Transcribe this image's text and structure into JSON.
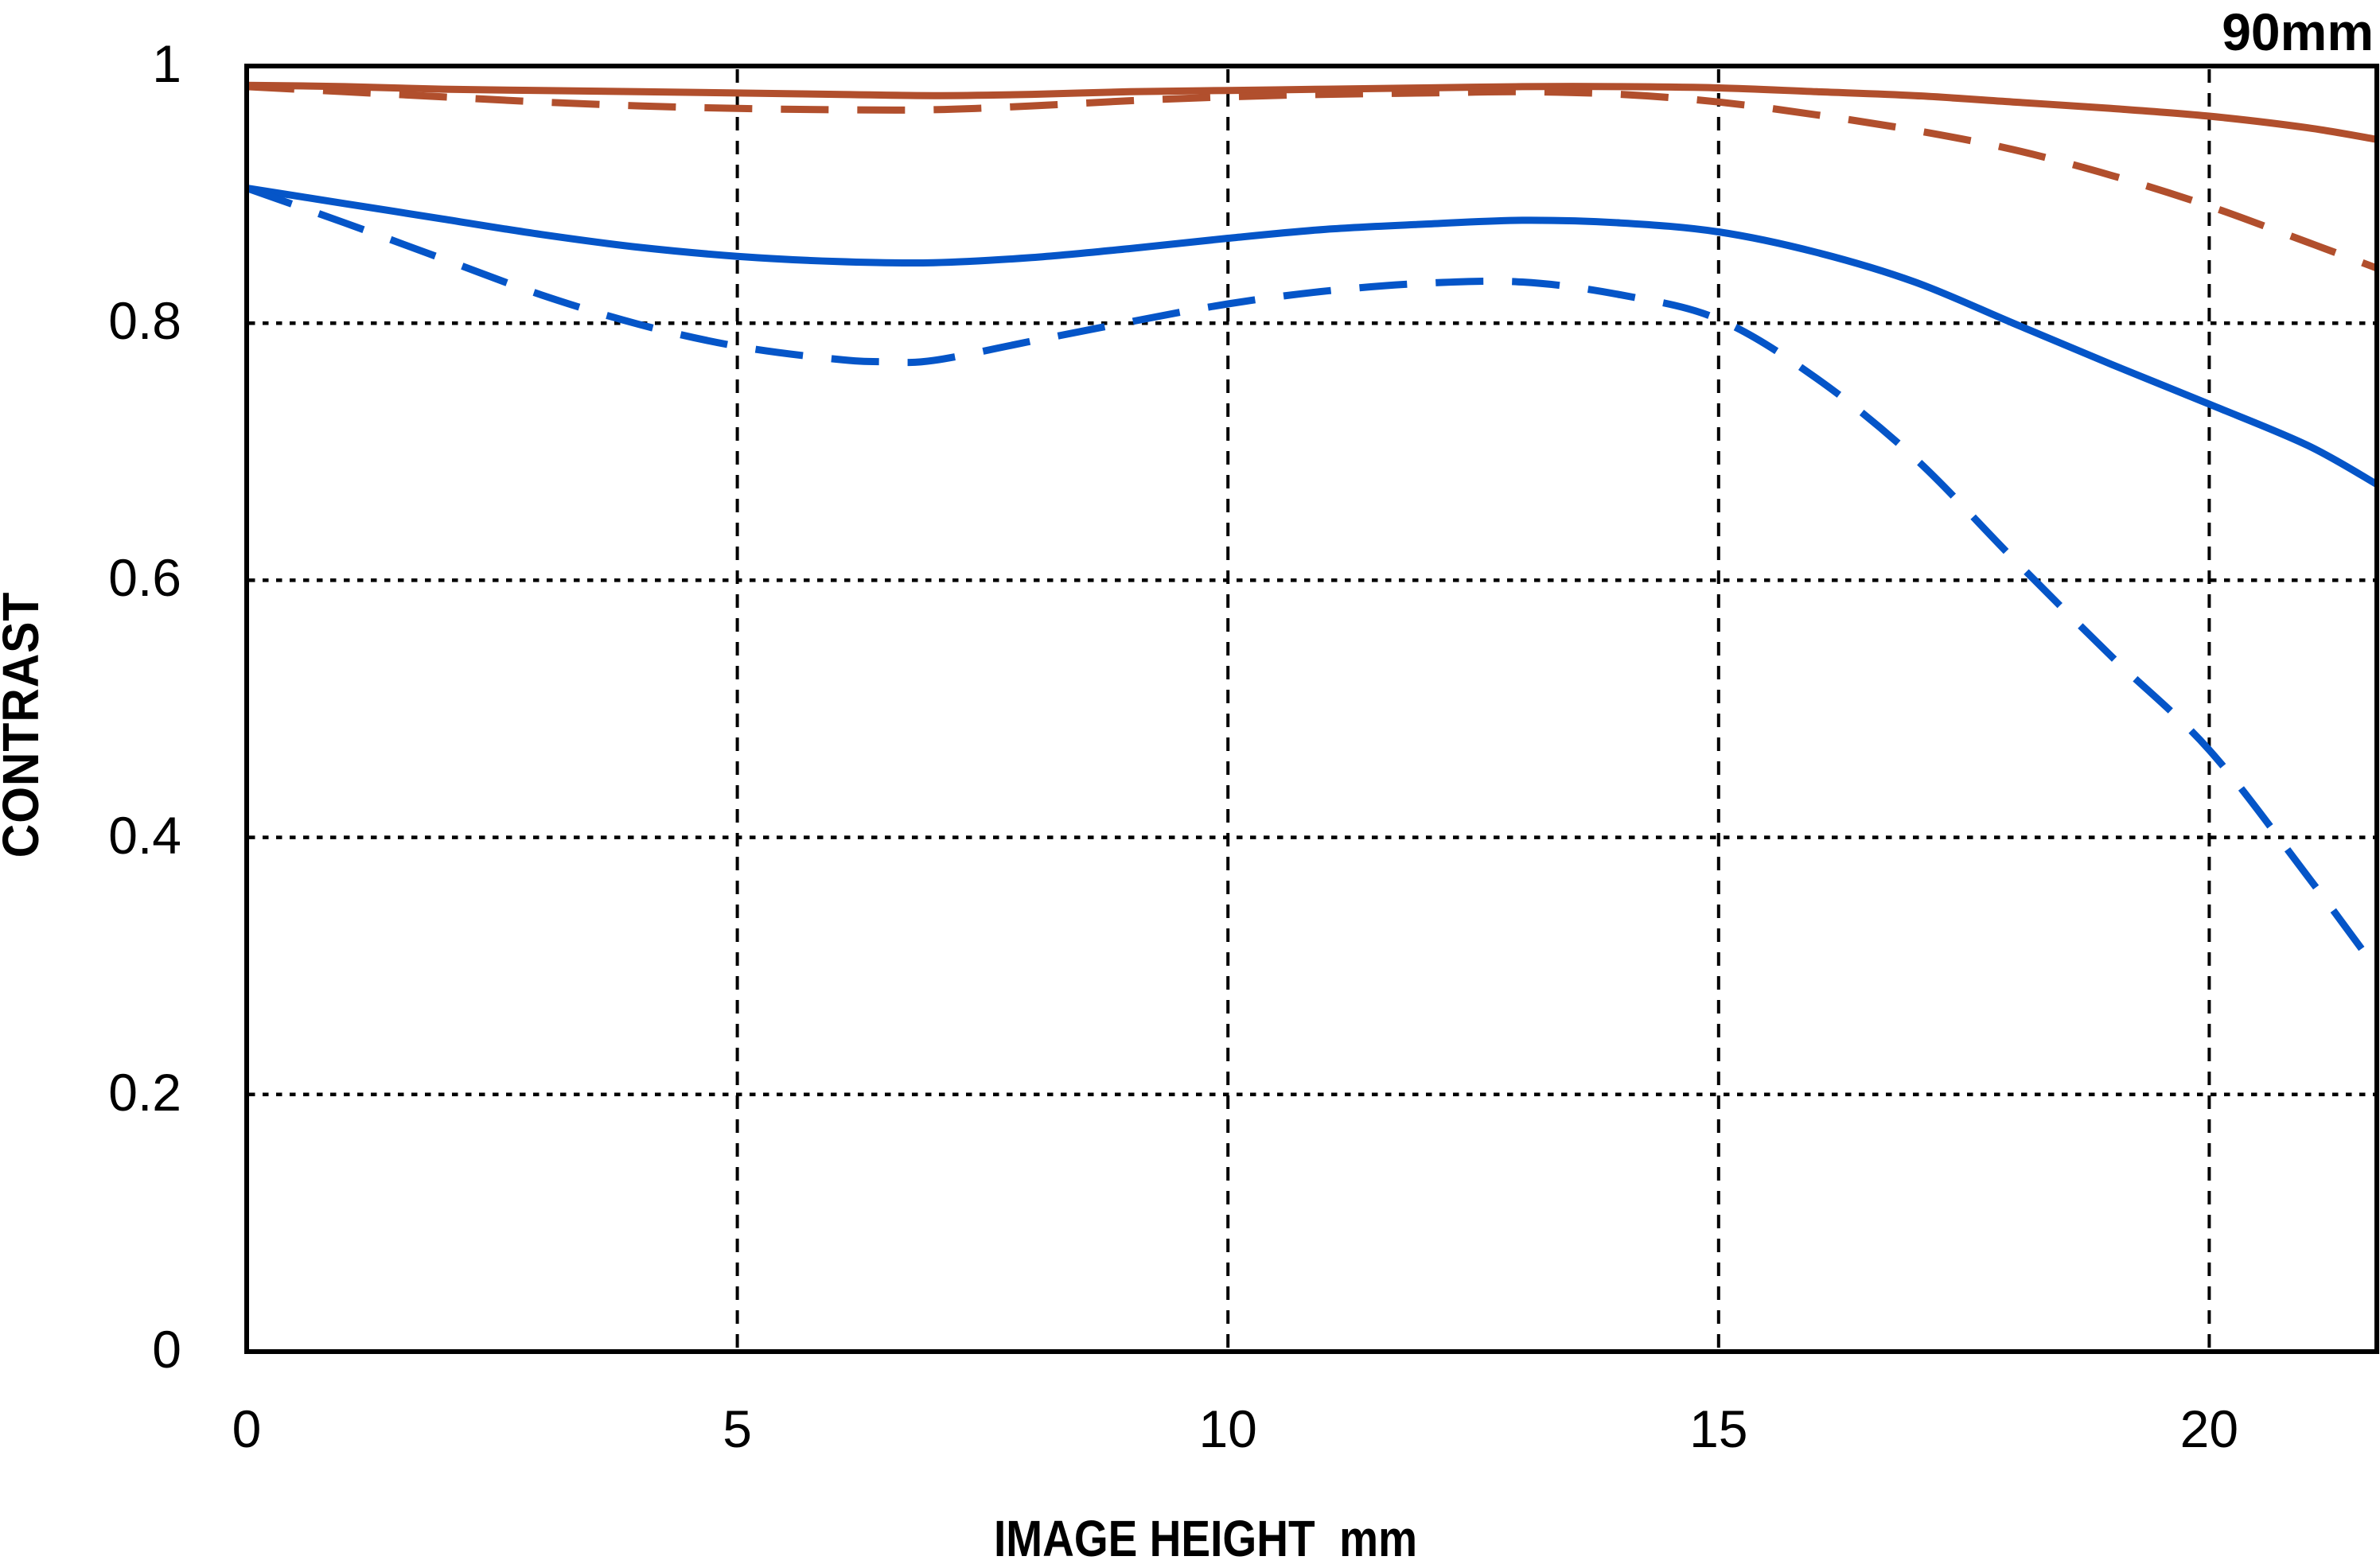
{
  "title": "90mm",
  "chart_data": {
    "type": "line",
    "title": "90mm",
    "xlabel": "IMAGE HEIGHT  mm",
    "ylabel": "CONTRAST",
    "xlim": [
      0,
      21.7
    ],
    "ylim": [
      0,
      1
    ],
    "grid": true,
    "legend": "none",
    "x_ticks": [
      {
        "v": 0,
        "label": "0"
      },
      {
        "v": 5,
        "label": "5"
      },
      {
        "v": 10,
        "label": "10"
      },
      {
        "v": 15,
        "label": "15"
      },
      {
        "v": 20,
        "label": "20"
      }
    ],
    "y_ticks": [
      {
        "v": 1,
        "label": "1"
      },
      {
        "v": 0.8,
        "label": "0.8"
      },
      {
        "v": 0.6,
        "label": "0.6"
      },
      {
        "v": 0.4,
        "label": "0.4"
      },
      {
        "v": 0.2,
        "label": "0.2"
      },
      {
        "v": 0,
        "label": "0"
      }
    ],
    "colors": {
      "red": "#b14f2d",
      "blue": "#0555c8",
      "axis": "#000000"
    },
    "series": [
      {
        "name": "red-solid",
        "color_key": "red",
        "dash": "solid",
        "points": [
          [
            0,
            0.985
          ],
          [
            1,
            0.984
          ],
          [
            2,
            0.982
          ],
          [
            3,
            0.981
          ],
          [
            4,
            0.98
          ],
          [
            5,
            0.979
          ],
          [
            6,
            0.978
          ],
          [
            7,
            0.977
          ],
          [
            8,
            0.978
          ],
          [
            9,
            0.98
          ],
          [
            10,
            0.981
          ],
          [
            11,
            0.982
          ],
          [
            12,
            0.983
          ],
          [
            13,
            0.984
          ],
          [
            14,
            0.984
          ],
          [
            15,
            0.983
          ],
          [
            16,
            0.98
          ],
          [
            17,
            0.977
          ],
          [
            18,
            0.972
          ],
          [
            19,
            0.967
          ],
          [
            20,
            0.961
          ],
          [
            21,
            0.952
          ],
          [
            21.7,
            0.943
          ]
        ]
      },
      {
        "name": "red-dashed",
        "color_key": "red",
        "dash": "dashed",
        "points": [
          [
            0,
            0.984
          ],
          [
            1,
            0.98
          ],
          [
            2,
            0.976
          ],
          [
            3,
            0.972
          ],
          [
            4,
            0.969
          ],
          [
            5,
            0.967
          ],
          [
            6,
            0.966
          ],
          [
            7,
            0.966
          ],
          [
            8,
            0.969
          ],
          [
            9,
            0.973
          ],
          [
            10,
            0.976
          ],
          [
            11,
            0.978
          ],
          [
            12,
            0.979
          ],
          [
            13,
            0.98
          ],
          [
            14,
            0.978
          ],
          [
            15,
            0.972
          ],
          [
            16,
            0.962
          ],
          [
            17,
            0.95
          ],
          [
            18,
            0.935
          ],
          [
            19,
            0.915
          ],
          [
            20,
            0.891
          ],
          [
            21,
            0.863
          ],
          [
            21.7,
            0.843
          ]
        ]
      },
      {
        "name": "blue-solid",
        "color_key": "blue",
        "dash": "solid",
        "points": [
          [
            0,
            0.905
          ],
          [
            1,
            0.893
          ],
          [
            2,
            0.881
          ],
          [
            3,
            0.869
          ],
          [
            4,
            0.859
          ],
          [
            5,
            0.852
          ],
          [
            6,
            0.848
          ],
          [
            7,
            0.847
          ],
          [
            8,
            0.851
          ],
          [
            9,
            0.858
          ],
          [
            10,
            0.866
          ],
          [
            11,
            0.873
          ],
          [
            12,
            0.877
          ],
          [
            13,
            0.88
          ],
          [
            14,
            0.878
          ],
          [
            15,
            0.871
          ],
          [
            16,
            0.855
          ],
          [
            17,
            0.832
          ],
          [
            18,
            0.8
          ],
          [
            19,
            0.768
          ],
          [
            20,
            0.737
          ],
          [
            21,
            0.705
          ],
          [
            21.7,
            0.675
          ]
        ]
      },
      {
        "name": "blue-dashed",
        "color_key": "blue",
        "dash": "dashed",
        "points": [
          [
            0,
            0.905
          ],
          [
            1,
            0.878
          ],
          [
            2,
            0.85
          ],
          [
            3,
            0.822
          ],
          [
            4,
            0.799
          ],
          [
            5,
            0.782
          ],
          [
            6,
            0.772
          ],
          [
            6.5,
            0.77
          ],
          [
            7,
            0.771
          ],
          [
            8,
            0.786
          ],
          [
            9,
            0.801
          ],
          [
            10,
            0.815
          ],
          [
            11,
            0.825
          ],
          [
            12,
            0.831
          ],
          [
            13,
            0.832
          ],
          [
            14,
            0.822
          ],
          [
            15,
            0.803
          ],
          [
            16,
            0.757
          ],
          [
            17,
            0.695
          ],
          [
            18,
            0.617
          ],
          [
            19,
            0.541
          ],
          [
            20,
            0.468
          ],
          [
            21,
            0.37
          ],
          [
            21.7,
            0.298
          ]
        ]
      }
    ]
  }
}
